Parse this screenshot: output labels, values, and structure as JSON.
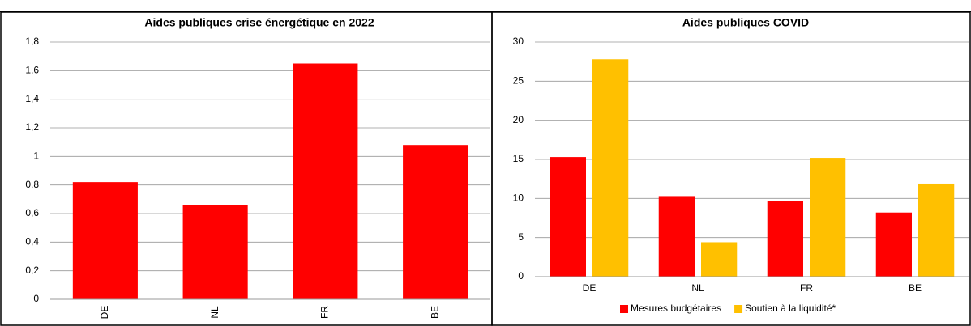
{
  "chart_data": [
    {
      "type": "bar",
      "title": "Aides publiques crise énergétique en 2022",
      "categories": [
        "DE",
        "NL",
        "FR",
        "BE"
      ],
      "values": [
        0.82,
        0.66,
        1.65,
        1.08
      ],
      "color": "#ff0000",
      "ylim": [
        0,
        1.8
      ],
      "yticks": [
        0,
        {
          "value": 0.2,
          "label": "0,2"
        },
        {
          "value": 0.4,
          "label": "0,4"
        },
        {
          "value": 0.6,
          "label": "0,6"
        },
        {
          "value": 0.8,
          "label": "0,8"
        },
        1,
        {
          "value": 1.2,
          "label": "1,2"
        },
        {
          "value": 1.4,
          "label": "1,4"
        },
        {
          "value": 1.6,
          "label": "1,6"
        },
        {
          "value": 1.8,
          "label": "1,8"
        }
      ],
      "grid": true,
      "rotate_labels": true
    },
    {
      "type": "bar",
      "title": "Aides publiques COVID",
      "categories": [
        "DE",
        "NL",
        "FR",
        "BE"
      ],
      "series": [
        {
          "name": "Mesures budgétaires",
          "color": "#ff0000",
          "values": [
            15.3,
            10.3,
            9.7,
            8.2
          ]
        },
        {
          "name": "Soutien à la liquidité*",
          "color": "#ffc000",
          "values": [
            27.8,
            4.4,
            15.2,
            11.9
          ]
        }
      ],
      "ylim": [
        0,
        30
      ],
      "yticks": [
        0,
        5,
        10,
        15,
        20,
        25,
        30
      ],
      "grid": true,
      "legend": "bottom"
    }
  ]
}
